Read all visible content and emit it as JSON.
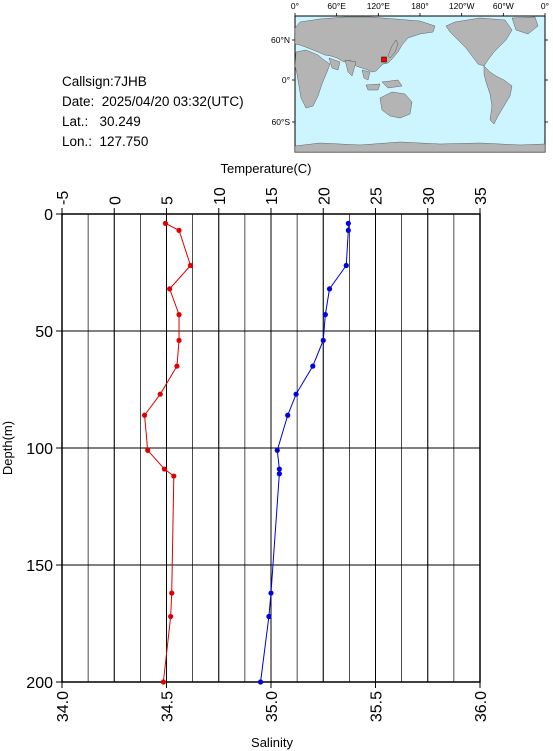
{
  "station": {
    "callsign_line": "Callsign:7JHB",
    "date_line": "Date:  2025/04/20 03:32(UTC)",
    "lat_line": "Lat.:   30.249",
    "lon_line": "Lon.:  127.750"
  },
  "map": {
    "top_labels": [
      "0°",
      "60°E",
      "120°E",
      "180°",
      "120°W",
      "60°W",
      "0°"
    ],
    "left_labels": [
      "60°N",
      "0°",
      "60°S"
    ],
    "ocean_color": "#ccf5ff",
    "land_color": "#b4b4b4",
    "marker_color": "#ff0000",
    "marker": {
      "lat": 30.249,
      "lon": 127.75
    }
  },
  "chart_data": {
    "type": "line",
    "x_top_label": "Temperature(C)",
    "x_bottom_label": "Salinity",
    "y_label": "Depth(m)",
    "temperature_axis": {
      "range": [
        -5,
        35
      ],
      "ticks": [
        "-5",
        "0",
        "5",
        "10",
        "15",
        "20",
        "25",
        "30",
        "35"
      ]
    },
    "salinity_axis": {
      "range": [
        34.0,
        36.0
      ],
      "ticks": [
        "34.0",
        "34.5",
        "35.0",
        "35.5",
        "36.0"
      ]
    },
    "depth_axis": {
      "range": [
        0,
        200
      ],
      "inverted": true,
      "ticks": [
        "0",
        "50",
        "100",
        "150",
        "200"
      ]
    },
    "grid": true,
    "series": [
      {
        "name": "Temperature",
        "color": "#e00000",
        "points": [
          [
            4.9,
            4
          ],
          [
            6.2,
            7
          ],
          [
            7.3,
            22
          ],
          [
            5.3,
            32
          ],
          [
            6.2,
            43
          ],
          [
            6.2,
            54
          ],
          [
            6.0,
            65
          ],
          [
            4.4,
            77
          ],
          [
            2.9,
            86
          ],
          [
            3.2,
            101
          ],
          [
            4.8,
            109
          ],
          [
            5.7,
            112
          ],
          [
            5.5,
            162
          ],
          [
            5.4,
            172
          ],
          [
            4.7,
            200
          ]
        ]
      },
      {
        "name": "Salinity",
        "color": "#0000e0",
        "points": [
          [
            35.37,
            4
          ],
          [
            35.37,
            7
          ],
          [
            35.36,
            22
          ],
          [
            35.28,
            32
          ],
          [
            35.26,
            43
          ],
          [
            35.25,
            54
          ],
          [
            35.2,
            65
          ],
          [
            35.12,
            77
          ],
          [
            35.08,
            86
          ],
          [
            35.03,
            101
          ],
          [
            35.04,
            109
          ],
          [
            35.04,
            111
          ],
          [
            35.0,
            162
          ],
          [
            34.99,
            172
          ],
          [
            34.95,
            200
          ]
        ]
      }
    ]
  }
}
